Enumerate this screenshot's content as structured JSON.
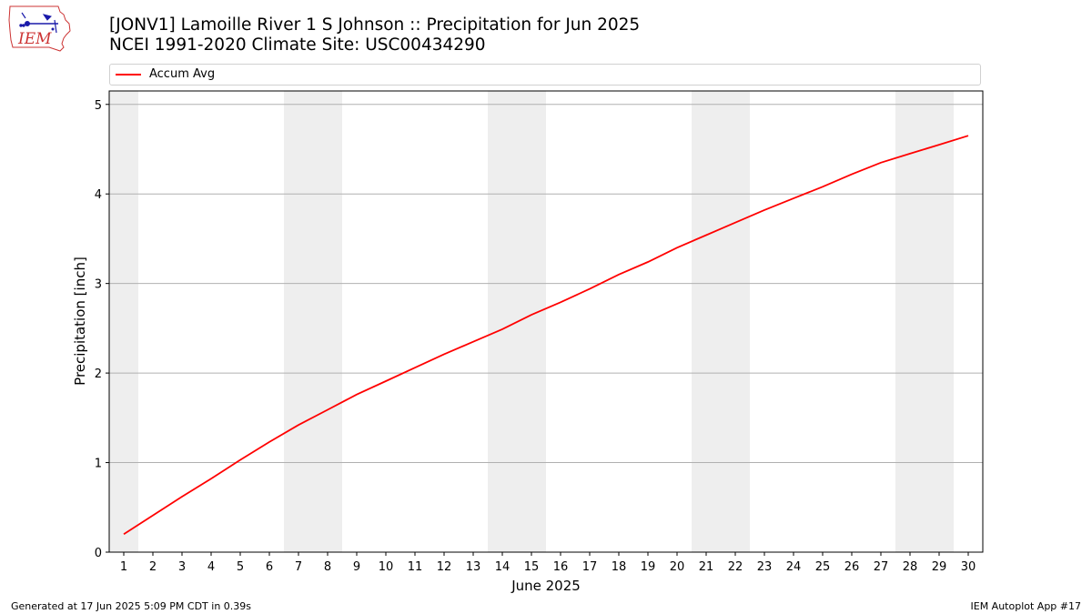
{
  "header": {
    "logo_text": "IEM",
    "title_line1": "[JONV1] Lamoille River 1 S Johnson :: Precipitation for Jun 2025",
    "title_line2": "NCEI 1991-2020 Climate Site: USC00434290"
  },
  "footer": {
    "generated": "Generated at 17 Jun 2025 5:09 PM CDT in 0.39s",
    "app": "IEM Autoplot App #17"
  },
  "colors": {
    "series": "#ff0000",
    "weekend_shade": "#eeeeee",
    "grid": "#b0b0b0",
    "logo_outline": "#cc3333",
    "logo_text": "#cc3333",
    "logo_icons": "#1a1aaa"
  },
  "chart_data": {
    "type": "line",
    "title": "[JONV1] Lamoille River 1 S Johnson :: Precipitation for Jun 2025",
    "subtitle": "NCEI 1991-2020 Climate Site: USC00434290",
    "xlabel": "June 2025",
    "ylabel": "Precipitation [inch]",
    "xlim": [
      0.5,
      30.5
    ],
    "ylim": [
      0,
      5.15
    ],
    "x_ticks": [
      1,
      2,
      3,
      4,
      5,
      6,
      7,
      8,
      9,
      10,
      11,
      12,
      13,
      14,
      15,
      16,
      17,
      18,
      19,
      20,
      21,
      22,
      23,
      24,
      25,
      26,
      27,
      28,
      29,
      30
    ],
    "y_ticks": [
      0,
      1,
      2,
      3,
      4,
      5
    ],
    "grid": "horizontal",
    "legend_position": "top",
    "weekend_days": [
      1,
      7,
      8,
      14,
      15,
      21,
      22,
      28,
      29
    ],
    "series": [
      {
        "name": "Accum Avg",
        "x": [
          1,
          2,
          3,
          4,
          5,
          6,
          7,
          8,
          9,
          10,
          11,
          12,
          13,
          14,
          15,
          16,
          17,
          18,
          19,
          20,
          21,
          22,
          23,
          24,
          25,
          26,
          27,
          28,
          29,
          30
        ],
        "values": [
          0.2,
          0.41,
          0.62,
          0.82,
          1.03,
          1.23,
          1.42,
          1.59,
          1.76,
          1.91,
          2.06,
          2.21,
          2.35,
          2.49,
          2.65,
          2.79,
          2.94,
          3.1,
          3.24,
          3.4,
          3.54,
          3.68,
          3.82,
          3.95,
          4.08,
          4.22,
          4.35,
          4.45,
          4.55,
          4.65
        ]
      }
    ]
  }
}
